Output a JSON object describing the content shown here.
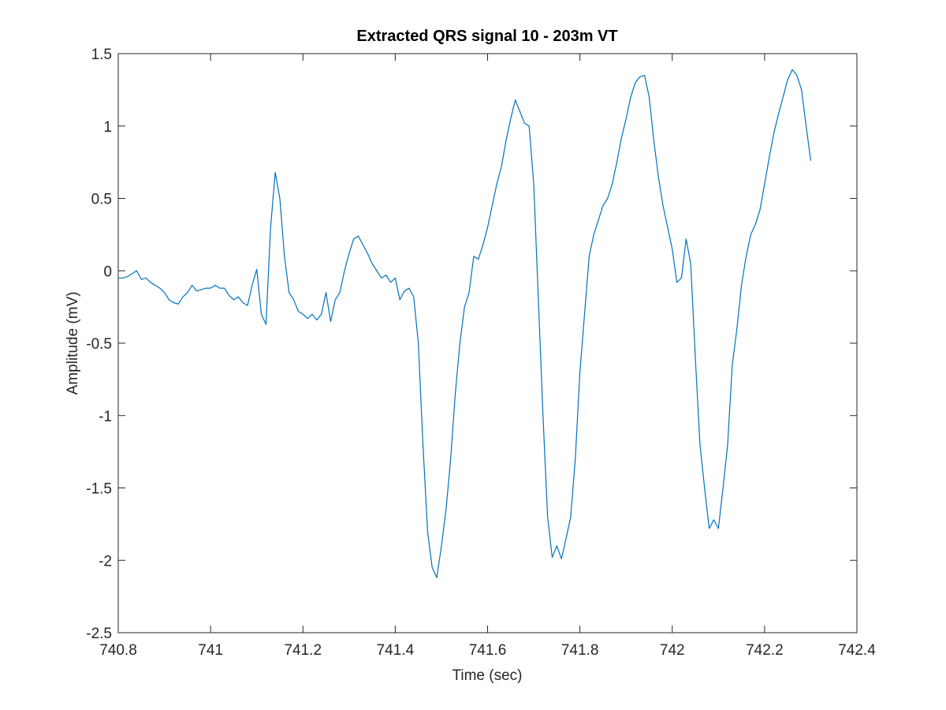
{
  "chart_data": {
    "type": "line",
    "title": "Extracted QRS signal 10 - 203m VT",
    "x_label": "Time (sec)",
    "y_label": "Amplitude (mV)",
    "color": "#0072bd",
    "xlim": [
      740.8,
      742.4
    ],
    "ylim": [
      -2.5,
      1.5
    ],
    "xticks": [
      740.8,
      741,
      741.2,
      741.4,
      741.6,
      741.8,
      742,
      742.2,
      742.4
    ],
    "yticks": [
      -2.5,
      -2,
      -1.5,
      -1,
      -0.5,
      0,
      0.5,
      1,
      1.5
    ],
    "grid": false,
    "x": [
      740.8,
      740.81,
      740.82,
      740.83,
      740.84,
      740.85,
      740.86,
      740.87,
      740.88,
      740.89,
      740.9,
      740.91,
      740.92,
      740.93,
      740.94,
      740.95,
      740.96,
      740.97,
      740.98,
      740.99,
      741.0,
      741.01,
      741.02,
      741.03,
      741.04,
      741.05,
      741.06,
      741.07,
      741.08,
      741.09,
      741.1,
      741.11,
      741.12,
      741.13,
      741.14,
      741.15,
      741.16,
      741.17,
      741.18,
      741.19,
      741.2,
      741.21,
      741.22,
      741.23,
      741.24,
      741.25,
      741.26,
      741.27,
      741.28,
      741.29,
      741.3,
      741.31,
      741.32,
      741.33,
      741.34,
      741.35,
      741.36,
      741.37,
      741.38,
      741.39,
      741.4,
      741.41,
      741.42,
      741.43,
      741.44,
      741.45,
      741.46,
      741.47,
      741.48,
      741.49,
      741.5,
      741.51,
      741.52,
      741.53,
      741.54,
      741.55,
      741.56,
      741.57,
      741.58,
      741.59,
      741.6,
      741.61,
      741.62,
      741.63,
      741.64,
      741.65,
      741.66,
      741.67,
      741.68,
      741.69,
      741.7,
      741.71,
      741.72,
      741.73,
      741.74,
      741.75,
      741.76,
      741.77,
      741.78,
      741.79,
      741.8,
      741.81,
      741.82,
      741.83,
      741.84,
      741.85,
      741.86,
      741.87,
      741.88,
      741.89,
      741.9,
      741.91,
      741.92,
      741.93,
      741.94,
      741.95,
      741.96,
      741.97,
      741.98,
      741.99,
      742.0,
      742.01,
      742.02,
      742.03,
      742.04,
      742.05,
      742.06,
      742.07,
      742.08,
      742.09,
      742.1,
      742.11,
      742.12,
      742.13,
      742.14,
      742.15,
      742.16,
      742.17,
      742.18,
      742.19,
      742.2,
      742.21,
      742.22,
      742.23,
      742.24,
      742.25,
      742.26,
      742.27,
      742.28,
      742.29,
      742.3
    ],
    "values": [
      -0.05,
      -0.05,
      -0.04,
      -0.02,
      0.0,
      -0.06,
      -0.05,
      -0.08,
      -0.1,
      -0.12,
      -0.15,
      -0.2,
      -0.22,
      -0.23,
      -0.18,
      -0.15,
      -0.1,
      -0.14,
      -0.13,
      -0.12,
      -0.12,
      -0.1,
      -0.12,
      -0.12,
      -0.17,
      -0.2,
      -0.18,
      -0.22,
      -0.24,
      -0.1,
      0.01,
      -0.3,
      -0.37,
      0.3,
      0.68,
      0.5,
      0.1,
      -0.15,
      -0.2,
      -0.28,
      -0.3,
      -0.33,
      -0.3,
      -0.34,
      -0.3,
      -0.15,
      -0.35,
      -0.2,
      -0.15,
      0.0,
      0.12,
      0.22,
      0.24,
      0.18,
      0.12,
      0.05,
      0.0,
      -0.05,
      -0.03,
      -0.08,
      -0.05,
      -0.2,
      -0.14,
      -0.12,
      -0.18,
      -0.5,
      -1.2,
      -1.8,
      -2.05,
      -2.12,
      -1.9,
      -1.65,
      -1.3,
      -0.85,
      -0.5,
      -0.25,
      -0.15,
      0.1,
      0.08,
      0.18,
      0.3,
      0.45,
      0.6,
      0.72,
      0.9,
      1.05,
      1.18,
      1.1,
      1.02,
      1.0,
      0.6,
      -0.2,
      -1.0,
      -1.7,
      -1.98,
      -1.9,
      -1.99,
      -1.85,
      -1.7,
      -1.3,
      -0.7,
      -0.3,
      0.1,
      0.25,
      0.35,
      0.45,
      0.5,
      0.6,
      0.75,
      0.92,
      1.05,
      1.2,
      1.3,
      1.34,
      1.35,
      1.2,
      0.9,
      0.65,
      0.45,
      0.3,
      0.15,
      -0.08,
      -0.05,
      0.22,
      0.05,
      -0.6,
      -1.2,
      -1.5,
      -1.78,
      -1.72,
      -1.78,
      -1.5,
      -1.2,
      -0.65,
      -0.4,
      -0.1,
      0.1,
      0.25,
      0.32,
      0.42,
      0.6,
      0.78,
      0.95,
      1.08,
      1.2,
      1.32,
      1.39,
      1.35,
      1.25,
      1.0,
      0.76
    ]
  }
}
